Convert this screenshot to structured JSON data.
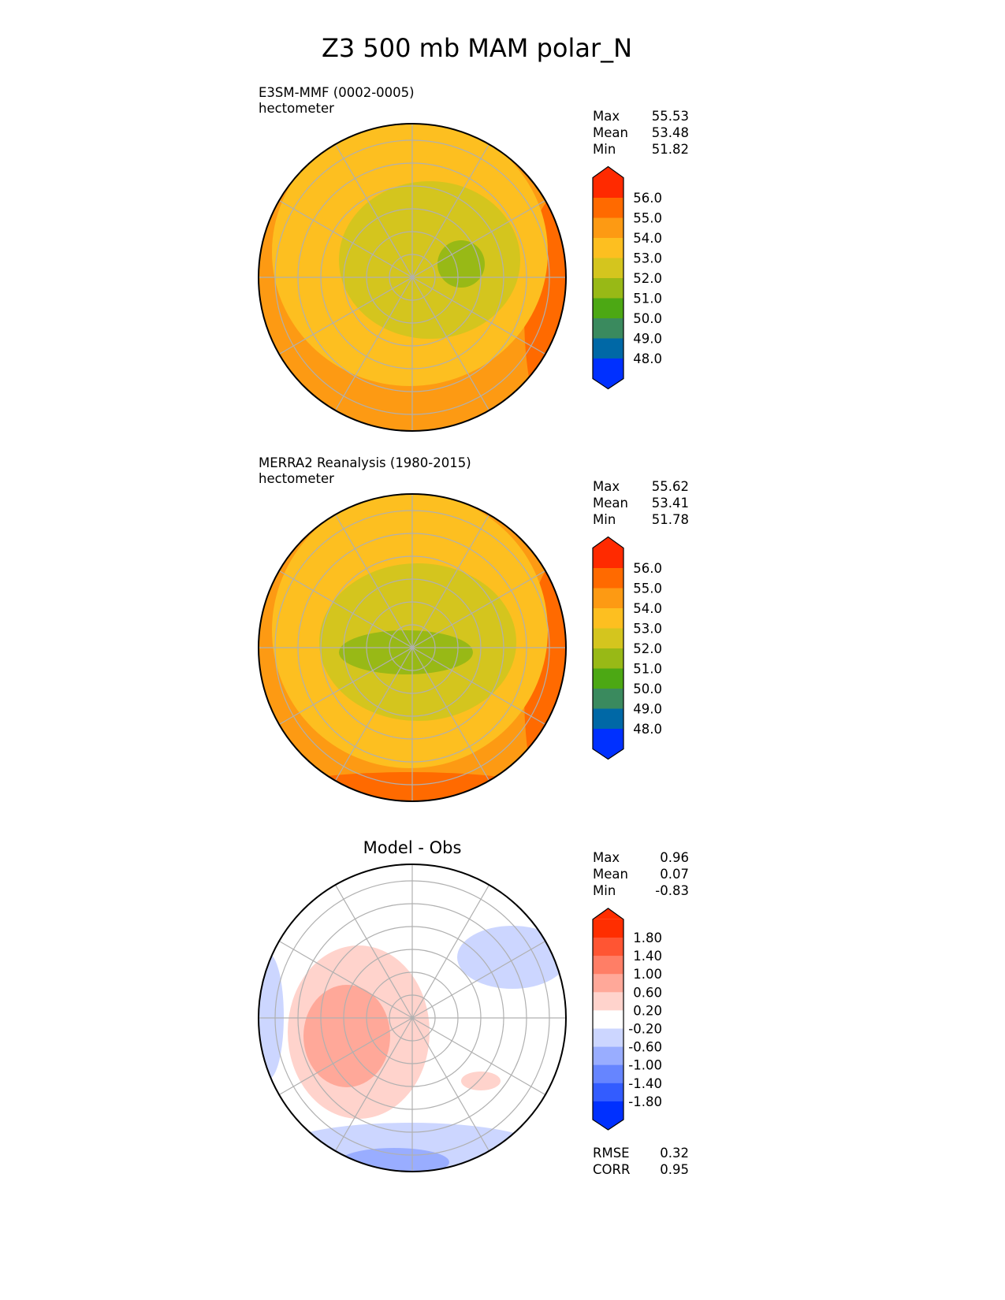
{
  "figure_title": "Z3 500 mb MAM polar_N",
  "panels": [
    {
      "name": "test",
      "line1": "E3SM-MMF (0002-0005)",
      "line2": "hectometer",
      "stats": [
        {
          "label": "Max",
          "value": "55.53"
        },
        {
          "label": "Mean",
          "value": "53.48"
        },
        {
          "label": "Min",
          "value": "51.82"
        }
      ]
    },
    {
      "name": "reference",
      "line1": "MERRA2 Reanalysis (1980-2015)",
      "line2": "hectometer",
      "stats": [
        {
          "label": "Max",
          "value": "55.62"
        },
        {
          "label": "Mean",
          "value": "53.41"
        },
        {
          "label": "Min",
          "value": "51.78"
        }
      ]
    },
    {
      "name": "difference",
      "title": "Model - Obs",
      "stats": [
        {
          "label": "Max",
          "value": "0.96"
        },
        {
          "label": "Mean",
          "value": "0.07"
        },
        {
          "label": "Min",
          "value": "-0.83"
        }
      ],
      "metrics": [
        {
          "label": "RMSE",
          "value": "0.32"
        },
        {
          "label": "CORR",
          "value": "0.95"
        }
      ]
    }
  ],
  "chart_data": {
    "type": "heatmap",
    "projection": "north polar stereographic",
    "colorbars": [
      {
        "ticks": [
          "56.0",
          "55.0",
          "54.0",
          "53.0",
          "52.0",
          "51.0",
          "50.0",
          "49.0",
          "48.0"
        ],
        "colors": [
          "#ff2a00",
          "#ff6a00",
          "#fd9a13",
          "#fdbf20",
          "#d4c51e",
          "#98b916",
          "#4ca814",
          "#3a8a5e",
          "#0068a6",
          "#0030ff"
        ]
      },
      {
        "ticks": [
          "56.0",
          "55.0",
          "54.0",
          "53.0",
          "52.0",
          "51.0",
          "50.0",
          "49.0",
          "48.0"
        ],
        "colors": [
          "#ff2a00",
          "#ff6a00",
          "#fd9a13",
          "#fdbf20",
          "#d4c51e",
          "#98b916",
          "#4ca814",
          "#3a8a5e",
          "#0068a6",
          "#0030ff"
        ]
      },
      {
        "ticks": [
          "1.80",
          "1.40",
          "1.00",
          "0.60",
          "0.20",
          "-0.20",
          "-0.60",
          "-1.00",
          "-1.40",
          "-1.80"
        ],
        "colors": [
          "#ff2e00",
          "#ff5533",
          "#ff7e66",
          "#ffa899",
          "#ffd3cc",
          "#ffffff",
          "#ccd6ff",
          "#99adff",
          "#6685ff",
          "#335cff",
          "#0030ff"
        ]
      }
    ]
  }
}
